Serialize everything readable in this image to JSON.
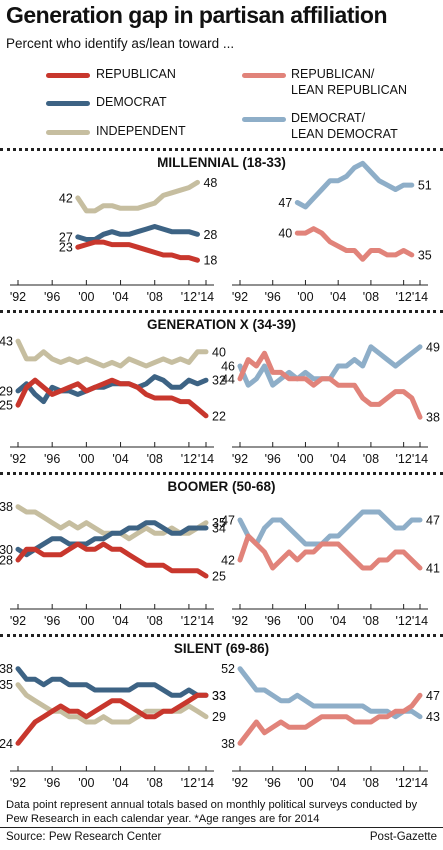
{
  "title": "Generation gap in partisan affiliation",
  "subtitle": "Percent who identify as/lean toward ...",
  "legend": [
    {
      "label1": "REPUBLICAN",
      "label2": "",
      "color": "#c8372d"
    },
    {
      "label1": "DEMOCRAT",
      "label2": "",
      "color": "#3d6384"
    },
    {
      "label1": "INDEPENDENT",
      "label2": "",
      "color": "#c6bea0"
    },
    {
      "label1": "REPUBLICAN/",
      "label2": "LEAN REPUBLICAN",
      "color": "#e1837a"
    },
    {
      "label1": "DEMOCRAT/",
      "label2": "LEAN DEMOCRAT",
      "color": "#8eaec8"
    }
  ],
  "note": "Data point represent annual totals based on monthly political surveys conducted by Pew Research in each calendar year. *Age ranges are for 2014",
  "source": "Source: Pew Research Center",
  "credit": "Post-Gazette",
  "chart_data": {
    "type": "line",
    "x": [
      1992,
      1993,
      1994,
      1995,
      1996,
      1997,
      1998,
      1999,
      2000,
      2001,
      2002,
      2003,
      2004,
      2005,
      2006,
      2007,
      2008,
      2009,
      2010,
      2011,
      2012,
      2013,
      2014
    ],
    "x_tick_labels": [
      "'92",
      "'96",
      "'00",
      "'04",
      "'08",
      "'12",
      "'14"
    ],
    "panels": [
      {
        "generation": "MILLENNIAL (18-33)",
        "left": [
          {
            "name": "INDEPENDENT",
            "color": "#c6bea0",
            "x0": 1999,
            "values": [
              42,
              37,
              37,
              39,
              39,
              38,
              38,
              38,
              39,
              40,
              43,
              44,
              45,
              46,
              48
            ],
            "start_label": "42",
            "end_label": "48"
          },
          {
            "name": "DEMOCRAT",
            "color": "#3d6384",
            "x0": 1999,
            "values": [
              27,
              26,
              26,
              28,
              29,
              28,
              28,
              29,
              30,
              31,
              30,
              29,
              29,
              29,
              28
            ],
            "start_label": "27",
            "end_label": "28"
          },
          {
            "name": "REPUBLICAN",
            "color": "#c8372d",
            "x0": 1999,
            "values": [
              23,
              24,
              25,
              25,
              24,
              24,
              24,
              23,
              22,
              21,
              20,
              20,
              19,
              19,
              18
            ],
            "start_label": "23",
            "end_label": "18"
          }
        ],
        "right": [
          {
            "name": "DEMOCRAT/ LEAN DEMOCRAT",
            "color": "#8eaec8",
            "x0": 1999,
            "values": [
              47,
              46,
              48,
              50,
              52,
              52,
              53,
              55,
              56,
              54,
              52,
              51,
              50,
              51,
              51
            ],
            "start_label": "47",
            "end_label": "51"
          },
          {
            "name": "REPUBLICAN/ LEAN REPUBLICAN",
            "color": "#e1837a",
            "x0": 1999,
            "values": [
              40,
              40,
              41,
              40,
              38,
              37,
              36,
              36,
              34,
              36,
              36,
              35,
              35,
              36,
              35
            ],
            "start_label": "40",
            "end_label": "35"
          }
        ]
      },
      {
        "generation": "GENERATION X (34-39)",
        "left": [
          {
            "name": "INDEPENDENT",
            "color": "#c6bea0",
            "x0": 1992,
            "values": [
              43,
              38,
              38,
              40,
              38,
              37,
              38,
              37,
              38,
              37,
              36,
              37,
              36,
              38,
              37,
              36,
              37,
              38,
              37,
              38,
              37,
              40,
              40
            ],
            "start_label": "43",
            "end_label": "40"
          },
          {
            "name": "DEMOCRAT",
            "color": "#3d6384",
            "x0": 1992,
            "values": [
              29,
              31,
              28,
              26,
              30,
              29,
              29,
              28,
              29,
              30,
              30,
              31,
              31,
              31,
              30,
              31,
              33,
              32,
              30,
              30,
              32,
              31,
              32
            ],
            "start_label": "29",
            "end_label": "32"
          },
          {
            "name": "REPUBLICAN",
            "color": "#c8372d",
            "x0": 1992,
            "values": [
              25,
              30,
              32,
              30,
              28,
              29,
              30,
              31,
              29,
              30,
              31,
              32,
              31,
              31,
              30,
              28,
              27,
              27,
              27,
              26,
              26,
              24,
              22
            ],
            "start_label": "25",
            "end_label": "22"
          }
        ],
        "right": [
          {
            "name": "DEMOCRAT/ LEAN DEMOCRAT",
            "color": "#8eaec8",
            "x0": 1992,
            "values": [
              46,
              43,
              44,
              46,
              43,
              44,
              45,
              44,
              45,
              44,
              44,
              44,
              46,
              46,
              47,
              46,
              49,
              48,
              47,
              46,
              47,
              48,
              49
            ],
            "start_label": "46",
            "end_label": "49"
          },
          {
            "name": "REPUBLICAN/ LEAN REPUBLICAN",
            "color": "#e1837a",
            "x0": 1992,
            "values": [
              44,
              47,
              46,
              48,
              45,
              45,
              44,
              44,
              44,
              43,
              44,
              44,
              43,
              43,
              43,
              41,
              40,
              40,
              41,
              42,
              42,
              41,
              38
            ],
            "start_label": "44",
            "end_label": "38"
          }
        ]
      },
      {
        "generation": "BOOMER (50-68)",
        "left": [
          {
            "name": "INDEPENDENT",
            "color": "#c6bea0",
            "x0": 1992,
            "values": [
              38,
              37,
              37,
              36,
              35,
              34,
              35,
              34,
              35,
              34,
              33,
              33,
              33,
              32,
              33,
              34,
              33,
              33,
              34,
              33,
              33,
              34,
              35
            ],
            "start_label": "38",
            "end_label": "35"
          },
          {
            "name": "DEMOCRAT",
            "color": "#3d6384",
            "x0": 1992,
            "values": [
              30,
              29,
              30,
              31,
              32,
              32,
              31,
              31,
              31,
              32,
              32,
              33,
              33,
              34,
              34,
              35,
              35,
              34,
              33,
              33,
              34,
              34,
              34
            ],
            "start_label": "30",
            "end_label": "34"
          },
          {
            "name": "REPUBLICAN",
            "color": "#c8372d",
            "x0": 1992,
            "values": [
              28,
              30,
              30,
              29,
              29,
              29,
              30,
              31,
              30,
              30,
              31,
              30,
              30,
              29,
              28,
              27,
              27,
              27,
              26,
              26,
              26,
              26,
              25
            ],
            "start_label": "28",
            "end_label": "25"
          }
        ],
        "right": [
          {
            "name": "DEMOCRAT/ LEAN DEMOCRAT",
            "color": "#8eaec8",
            "x0": 1992,
            "values": [
              47,
              45,
              44,
              46,
              47,
              47,
              46,
              45,
              44,
              44,
              44,
              45,
              45,
              46,
              47,
              48,
              48,
              48,
              47,
              46,
              46,
              47,
              47
            ],
            "start_label": "47",
            "end_label": "47"
          },
          {
            "name": "REPUBLICAN/ LEAN REPUBLICAN",
            "color": "#e1837a",
            "x0": 1992,
            "values": [
              42,
              45,
              44,
              43,
              41,
              42,
              43,
              42,
              43,
              43,
              44,
              44,
              44,
              43,
              42,
              41,
              41,
              42,
              42,
              43,
              43,
              42,
              41
            ],
            "start_label": "42",
            "end_label": "41"
          }
        ]
      },
      {
        "generation": "SILENT (69-86)",
        "left": [
          {
            "name": "DEMOCRAT",
            "color": "#3d6384",
            "x0": 1992,
            "values": [
              38,
              36,
              36,
              35,
              36,
              36,
              35,
              35,
              35,
              34,
              34,
              34,
              34,
              34,
              35,
              35,
              35,
              34,
              33,
              33,
              34,
              33,
              33
            ],
            "start_label": "38",
            "end_label": "33"
          },
          {
            "name": "INDEPENDENT",
            "color": "#c6bea0",
            "x0": 1992,
            "values": [
              35,
              33,
              32,
              31,
              30,
              30,
              29,
              29,
              28,
              28,
              29,
              28,
              28,
              28,
              29,
              30,
              30,
              30,
              30,
              30,
              31,
              30,
              29
            ],
            "start_label": "35",
            "end_label": "29"
          },
          {
            "name": "REPUBLICAN",
            "color": "#c8372d",
            "x0": 1992,
            "values": [
              24,
              26,
              28,
              29,
              30,
              31,
              30,
              30,
              29,
              30,
              31,
              32,
              32,
              31,
              30,
              29,
              29,
              30,
              30,
              31,
              32,
              33,
              33
            ],
            "start_label": "24",
            "end_label": "33"
          }
        ],
        "right": [
          {
            "name": "DEMOCRAT/ LEAN DEMOCRAT",
            "color": "#8eaec8",
            "x0": 1992,
            "values": [
              52,
              50,
              48,
              48,
              47,
              46,
              46,
              47,
              46,
              45,
              45,
              45,
              45,
              45,
              45,
              45,
              44,
              44,
              44,
              43,
              44,
              44,
              43
            ],
            "start_label": "52",
            "end_label": "43"
          },
          {
            "name": "REPUBLICAN/ LEAN REPUBLICAN",
            "color": "#e1837a",
            "x0": 1992,
            "values": [
              38,
              40,
              42,
              40,
              41,
              42,
              41,
              41,
              41,
              42,
              43,
              43,
              43,
              43,
              42,
              42,
              42,
              43,
              43,
              44,
              44,
              45,
              47
            ],
            "start_label": "38",
            "end_label": "47"
          }
        ]
      }
    ]
  }
}
